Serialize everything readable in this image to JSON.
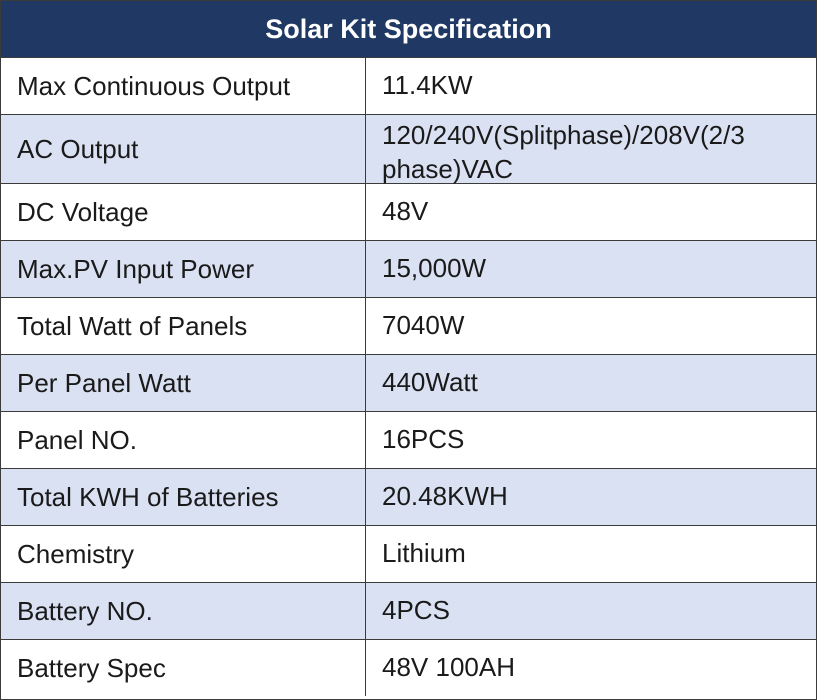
{
  "table": {
    "title": "Solar Kit Specification",
    "rows": [
      {
        "label": "Max Continuous Output",
        "value": "11.4KW"
      },
      {
        "label": "AC Output",
        "value": "120/240V(Splitphase)/208V(2/3 phase)VAC"
      },
      {
        "label": "DC Voltage",
        "value": "48V"
      },
      {
        "label": "Max.PV Input Power",
        "value": "15,000W"
      },
      {
        "label": "Total Watt of Panels",
        "value": "7040W"
      },
      {
        "label": "Per Panel Watt",
        "value": "440Watt"
      },
      {
        "label": "Panel NO.",
        "value": "16PCS"
      },
      {
        "label": "Total KWH of Batteries",
        "value": "20.48KWH"
      },
      {
        "label": "Chemistry",
        "value": "Lithium"
      },
      {
        "label": "Battery NO.",
        "value": "4PCS"
      },
      {
        "label": "Battery Spec",
        "value": "48V 100AH"
      }
    ]
  },
  "colors": {
    "header_bg": "#1f3864",
    "header_text": "#ffffff",
    "shaded_row": "#d9e1f2",
    "plain_row": "#ffffff",
    "border": "#3b3b3b"
  }
}
